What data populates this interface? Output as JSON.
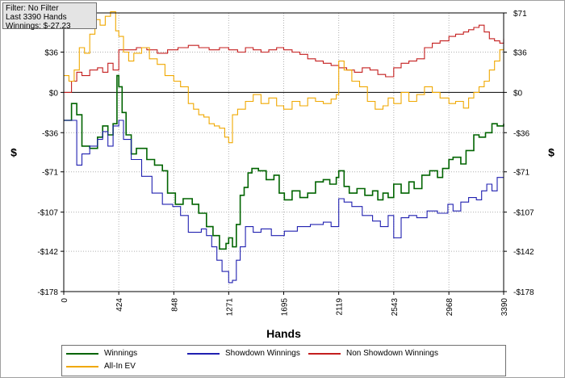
{
  "info": {
    "line1": "Filter: No Filter",
    "line2": "Last  3390 Hands",
    "line3": "Winnings: $-27.23"
  },
  "colors": {
    "winnings": "#006400",
    "showdown": "#2020b0",
    "non_showdown": "#c41e1e",
    "allin_ev": "#f0a800",
    "grid": "#b0b0b0",
    "zero_line": "#000000"
  },
  "chart_data": {
    "type": "line",
    "title": "",
    "xlabel": "Hands",
    "ylabel": "$",
    "xlim": [
      0,
      3390
    ],
    "ylim": [
      -178,
      71
    ],
    "x_ticks": [
      0,
      424,
      848,
      1271,
      1695,
      2119,
      2543,
      2968,
      3390
    ],
    "x_tick_labels": [
      "0",
      "424",
      "848",
      "1271",
      "1695",
      "2119",
      "2543",
      "2968",
      "3390"
    ],
    "y_ticks": [
      71,
      36,
      0,
      -36,
      -71,
      -107,
      -142,
      -178
    ],
    "y_tick_labels": [
      "$71",
      "$36",
      "$0",
      "-$36",
      "-$71",
      "-$107",
      "-$142",
      "-$178"
    ],
    "series": [
      {
        "name": "Winnings",
        "key": "winnings",
        "x": [
          0,
          60,
          100,
          140,
          200,
          260,
          300,
          340,
          380,
          410,
          424,
          450,
          480,
          520,
          560,
          640,
          700,
          760,
          800,
          860,
          920,
          990,
          1040,
          1100,
          1150,
          1200,
          1250,
          1271,
          1300,
          1330,
          1360,
          1390,
          1420,
          1450,
          1500,
          1560,
          1620,
          1660,
          1700,
          1760,
          1820,
          1880,
          1940,
          2000,
          2050,
          2100,
          2119,
          2160,
          2200,
          2260,
          2320,
          2380,
          2420,
          2460,
          2500,
          2543,
          2600,
          2660,
          2700,
          2760,
          2820,
          2880,
          2920,
          2968,
          3000,
          3060,
          3100,
          3160,
          3200,
          3250,
          3300,
          3340,
          3390
        ],
        "values": [
          -25,
          -10,
          -20,
          -48,
          -50,
          -40,
          -30,
          -38,
          -28,
          15,
          5,
          -18,
          -38,
          -55,
          -50,
          -60,
          -65,
          -70,
          -90,
          -100,
          -95,
          -100,
          -108,
          -120,
          -128,
          -140,
          -135,
          -130,
          -138,
          -118,
          -92,
          -85,
          -72,
          -68,
          -70,
          -78,
          -74,
          -90,
          -96,
          -88,
          -94,
          -90,
          -80,
          -78,
          -82,
          -76,
          -70,
          -84,
          -90,
          -86,
          -92,
          -88,
          -96,
          -90,
          -94,
          -82,
          -90,
          -80,
          -86,
          -74,
          -70,
          -76,
          -68,
          -60,
          -58,
          -64,
          -52,
          -38,
          -40,
          -36,
          -28,
          -30,
          -28
        ]
      },
      {
        "name": "Showdown Winnings",
        "key": "showdown",
        "x": [
          0,
          60,
          100,
          140,
          200,
          260,
          300,
          340,
          380,
          424,
          460,
          520,
          600,
          680,
          760,
          840,
          900,
          960,
          1010,
          1060,
          1100,
          1140,
          1180,
          1220,
          1271,
          1300,
          1330,
          1360,
          1400,
          1460,
          1520,
          1600,
          1700,
          1800,
          1900,
          2000,
          2060,
          2119,
          2160,
          2220,
          2300,
          2380,
          2440,
          2500,
          2543,
          2600,
          2660,
          2720,
          2800,
          2880,
          2960,
          3000,
          3060,
          3120,
          3180,
          3220,
          3260,
          3300,
          3340,
          3390
        ],
        "values": [
          -25,
          -25,
          -65,
          -55,
          -48,
          -42,
          -35,
          -48,
          -30,
          -25,
          -42,
          -60,
          -75,
          -90,
          -100,
          -102,
          -110,
          -125,
          -125,
          -122,
          -128,
          -138,
          -150,
          -160,
          -170,
          -168,
          -150,
          -138,
          -120,
          -125,
          -122,
          -128,
          -124,
          -120,
          -118,
          -116,
          -120,
          -95,
          -98,
          -102,
          -110,
          -115,
          -120,
          -110,
          -130,
          -112,
          -110,
          -112,
          -106,
          -108,
          -100,
          -106,
          -98,
          -94,
          -96,
          -88,
          -82,
          -88,
          -76,
          -76
        ]
      },
      {
        "name": "Non Showdown Winnings",
        "key": "non_showdown",
        "x": [
          0,
          60,
          100,
          140,
          200,
          260,
          300,
          340,
          380,
          424,
          480,
          560,
          640,
          720,
          800,
          880,
          960,
          1040,
          1120,
          1200,
          1271,
          1340,
          1400,
          1460,
          1520,
          1580,
          1640,
          1695,
          1760,
          1820,
          1880,
          1940,
          2000,
          2060,
          2119,
          2180,
          2240,
          2300,
          2360,
          2420,
          2480,
          2543,
          2600,
          2660,
          2720,
          2780,
          2840,
          2900,
          2968,
          3020,
          3080,
          3120,
          3160,
          3200,
          3240,
          3280,
          3320,
          3360,
          3390
        ],
        "values": [
          0,
          10,
          18,
          15,
          20,
          22,
          18,
          26,
          20,
          38,
          38,
          40,
          38,
          35,
          38,
          40,
          42,
          40,
          38,
          40,
          38,
          36,
          40,
          38,
          36,
          38,
          40,
          38,
          36,
          34,
          30,
          28,
          26,
          24,
          22,
          20,
          18,
          22,
          20,
          16,
          14,
          22,
          26,
          28,
          30,
          40,
          44,
          46,
          50,
          52,
          54,
          56,
          58,
          60,
          54,
          48,
          46,
          44,
          48
        ]
      },
      {
        "name": "All-In EV",
        "key": "allin_ev",
        "x": [
          0,
          40,
          80,
          120,
          160,
          200,
          240,
          280,
          320,
          360,
          400,
          424,
          460,
          500,
          540,
          600,
          660,
          720,
          780,
          848,
          900,
          960,
          1000,
          1040,
          1080,
          1120,
          1160,
          1200,
          1240,
          1271,
          1300,
          1340,
          1400,
          1460,
          1520,
          1580,
          1640,
          1695,
          1760,
          1820,
          1880,
          1940,
          2000,
          2060,
          2100,
          2119,
          2160,
          2220,
          2280,
          2340,
          2400,
          2460,
          2500,
          2543,
          2600,
          2660,
          2720,
          2780,
          2840,
          2900,
          2968,
          3020,
          3080,
          3120,
          3160,
          3200,
          3240,
          3280,
          3320,
          3360,
          3390
        ],
        "values": [
          15,
          10,
          20,
          40,
          35,
          52,
          65,
          60,
          68,
          72,
          55,
          50,
          36,
          28,
          35,
          40,
          30,
          25,
          15,
          10,
          5,
          -10,
          -15,
          -20,
          -22,
          -28,
          -30,
          -32,
          -40,
          -45,
          -20,
          -15,
          -8,
          -2,
          -10,
          -5,
          -12,
          -15,
          -8,
          -12,
          -5,
          -8,
          -10,
          -6,
          -2,
          28,
          20,
          10,
          5,
          -8,
          -15,
          -12,
          -5,
          -10,
          0,
          -8,
          -2,
          5,
          0,
          -5,
          -10,
          -8,
          -14,
          -5,
          0,
          5,
          10,
          20,
          28,
          38,
          40
        ]
      }
    ]
  },
  "legend": {
    "items": [
      {
        "label": "Winnings",
        "key": "winnings"
      },
      {
        "label": "Showdown Winnings",
        "key": "showdown"
      },
      {
        "label": "Non Showdown Winnings",
        "key": "non_showdown"
      },
      {
        "label": "All-In EV",
        "key": "allin_ev"
      }
    ]
  }
}
